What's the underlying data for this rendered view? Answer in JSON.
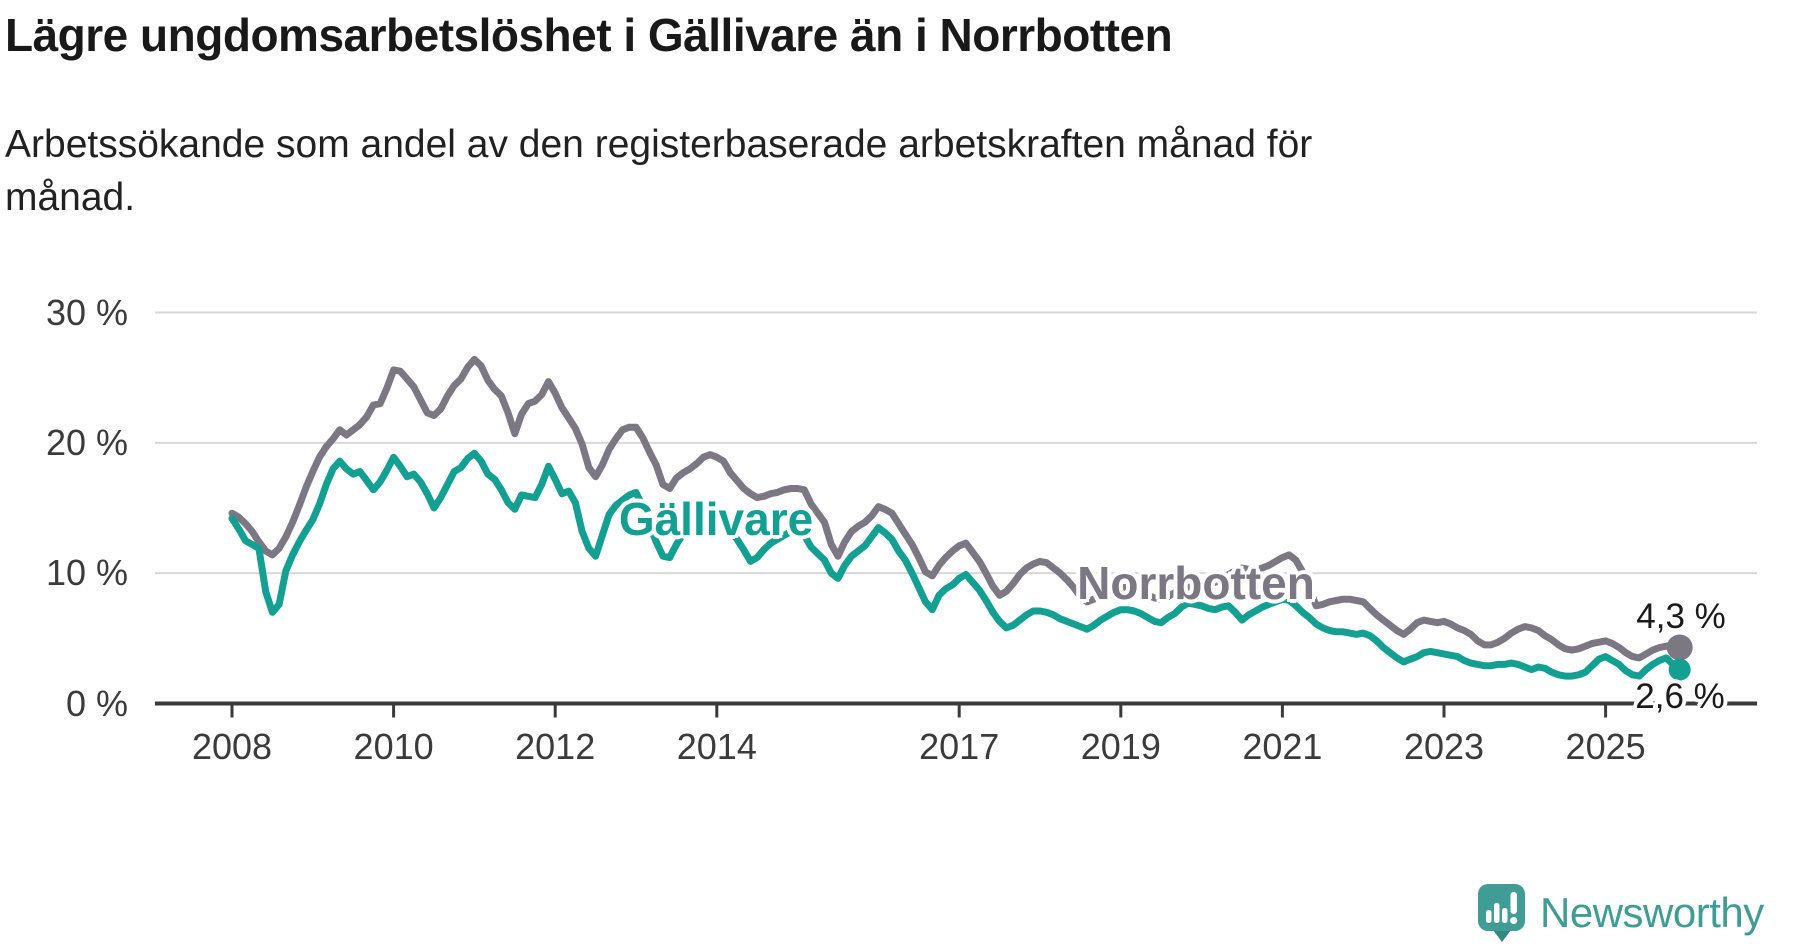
{
  "header": {
    "title": "Lägre ungdomsarbetslöshet i Gällivare än i Norrbotten",
    "subtitle": "Arbetssökande som andel av den registerbaserade arbetskraften månad för månad.",
    "subtitle_lines": [
      "Arbetssökande som andel av den registerbaserade arbetskraften månad för",
      "månad."
    ]
  },
  "footer": {
    "brand": "Newsworthy",
    "brand_color": "#3f9d96"
  },
  "chart_data": {
    "type": "line",
    "title": "Lägre ungdomsarbetslöshet i Gällivare än i Norrbotten",
    "xlabel": "",
    "ylabel": "",
    "grid": true,
    "legend_position": "inline-labels",
    "x_axis": {
      "unit": "year",
      "range": [
        2008.0,
        2025.92
      ],
      "tick_years": [
        2008,
        2010,
        2012,
        2014,
        2017,
        2019,
        2021,
        2023,
        2025
      ]
    },
    "y_axis": {
      "unit": "%",
      "range": [
        0,
        30
      ],
      "ticks": [
        {
          "value": 0,
          "label": "0 %"
        },
        {
          "value": 10,
          "label": "10 %"
        },
        {
          "value": 20,
          "label": "20 %"
        },
        {
          "value": 30,
          "label": "30 %"
        }
      ]
    },
    "series": [
      {
        "name": "Norrbotten",
        "label_text": "Norrbotten",
        "color": "#7b7884",
        "end_label": "4,3 %",
        "end_value": 4.3,
        "start_year": 2008.0,
        "points_per_year": 12,
        "values": [
          14.6,
          14.3,
          13.8,
          13.2,
          12.4,
          11.7,
          11.4,
          11.9,
          12.8,
          13.9,
          15.2,
          16.6,
          17.8,
          18.9,
          19.7,
          20.3,
          21.0,
          20.6,
          21.0,
          21.4,
          22.0,
          22.9,
          23.0,
          24.2,
          25.6,
          25.5,
          24.9,
          24.3,
          23.3,
          22.3,
          22.1,
          22.6,
          23.6,
          24.4,
          24.9,
          25.8,
          26.4,
          25.9,
          24.8,
          24.1,
          23.6,
          22.3,
          20.7,
          22.2,
          23.0,
          23.2,
          23.7,
          24.7,
          23.8,
          22.7,
          21.9,
          21.1,
          19.9,
          18.1,
          17.4,
          18.3,
          19.5,
          20.3,
          21.0,
          21.2,
          21.2,
          20.4,
          19.3,
          18.3,
          16.8,
          16.5,
          17.3,
          17.7,
          18.0,
          18.4,
          18.9,
          19.1,
          18.9,
          18.6,
          17.7,
          17.1,
          16.5,
          16.1,
          15.8,
          15.9,
          16.1,
          16.2,
          16.4,
          16.5,
          16.5,
          16.4,
          15.3,
          14.6,
          13.9,
          12.2,
          11.3,
          12.4,
          13.2,
          13.6,
          13.9,
          14.4,
          15.1,
          14.9,
          14.6,
          13.8,
          13.0,
          12.2,
          11.2,
          10.1,
          9.8,
          10.6,
          11.2,
          11.7,
          12.1,
          12.3,
          11.6,
          10.9,
          10.0,
          9.0,
          8.3,
          8.6,
          9.2,
          9.9,
          10.4,
          10.7,
          10.9,
          10.8,
          10.4,
          10.0,
          9.5,
          8.9,
          8.2,
          7.8,
          8.0,
          8.3,
          8.5,
          8.7,
          8.9,
          8.9,
          8.7,
          8.5,
          8.3,
          8.1,
          8.0,
          8.2,
          8.5,
          8.7,
          8.9,
          9.0,
          9.1,
          9.2,
          9.3,
          9.6,
          9.9,
          10.2,
          10.4,
          10.3,
          10.2,
          10.4,
          10.6,
          10.9,
          11.2,
          11.4,
          11.0,
          10.1,
          8.9,
          7.5,
          7.6,
          7.8,
          7.9,
          8.0,
          8.0,
          7.9,
          7.8,
          7.3,
          6.8,
          6.4,
          6.0,
          5.6,
          5.3,
          5.7,
          6.2,
          6.4,
          6.3,
          6.2,
          6.3,
          6.1,
          5.8,
          5.6,
          5.3,
          4.8,
          4.5,
          4.5,
          4.7,
          5.0,
          5.4,
          5.7,
          5.9,
          5.8,
          5.6,
          5.2,
          4.9,
          4.5,
          4.2,
          4.1,
          4.2,
          4.4,
          4.6,
          4.7,
          4.8,
          4.6,
          4.3,
          3.9,
          3.6,
          3.5,
          3.8,
          4.1,
          4.3,
          4.4,
          4.5,
          4.3
        ]
      },
      {
        "name": "Gällivare",
        "label_text": "Gällivare",
        "color": "#13a093",
        "end_label": "2,6 %",
        "end_value": 2.6,
        "start_year": 2008.0,
        "points_per_year": 12,
        "values": [
          14.2,
          13.4,
          12.5,
          12.2,
          11.9,
          8.6,
          7.0,
          7.6,
          10.2,
          11.4,
          12.4,
          13.3,
          14.1,
          15.3,
          16.8,
          18.0,
          18.6,
          18.0,
          17.6,
          17.8,
          17.1,
          16.4,
          17.0,
          17.9,
          18.9,
          18.2,
          17.4,
          17.6,
          17.0,
          16.1,
          15.0,
          15.8,
          16.8,
          17.8,
          18.1,
          18.8,
          19.2,
          18.6,
          17.6,
          17.2,
          16.4,
          15.4,
          14.9,
          16.0,
          15.9,
          15.8,
          16.8,
          18.2,
          17.2,
          16.1,
          16.3,
          15.4,
          13.2,
          11.9,
          11.3,
          12.9,
          14.5,
          15.2,
          15.6,
          16.0,
          16.2,
          15.1,
          13.7,
          12.4,
          11.3,
          11.2,
          12.2,
          13.0,
          13.4,
          14.0,
          14.6,
          14.9,
          14.6,
          14.0,
          13.3,
          12.6,
          11.8,
          10.9,
          11.2,
          11.8,
          12.3,
          12.6,
          12.9,
          13.2,
          13.4,
          12.9,
          12.0,
          11.5,
          11.0,
          10.0,
          9.6,
          10.6,
          11.3,
          11.7,
          12.1,
          12.8,
          13.5,
          13.1,
          12.6,
          11.7,
          11.0,
          10.0,
          8.9,
          7.8,
          7.2,
          8.3,
          8.8,
          9.1,
          9.6,
          9.9,
          9.3,
          8.7,
          7.9,
          7.0,
          6.3,
          5.8,
          6.0,
          6.4,
          6.8,
          7.1,
          7.1,
          7.0,
          6.8,
          6.5,
          6.3,
          6.1,
          5.9,
          5.7,
          6.0,
          6.4,
          6.7,
          7.0,
          7.2,
          7.2,
          7.1,
          6.9,
          6.6,
          6.3,
          6.2,
          6.6,
          6.9,
          7.4,
          7.7,
          7.6,
          7.5,
          7.3,
          7.2,
          7.4,
          7.5,
          7.0,
          6.4,
          6.8,
          7.1,
          7.4,
          7.6,
          7.8,
          8.0,
          7.9,
          7.5,
          7.0,
          6.6,
          6.1,
          5.8,
          5.6,
          5.5,
          5.5,
          5.4,
          5.3,
          5.4,
          5.2,
          4.8,
          4.3,
          3.9,
          3.5,
          3.2,
          3.4,
          3.6,
          3.9,
          4.0,
          3.9,
          3.8,
          3.7,
          3.6,
          3.3,
          3.1,
          3.0,
          2.9,
          2.9,
          3.0,
          3.0,
          3.1,
          3.0,
          2.8,
          2.6,
          2.8,
          2.7,
          2.4,
          2.2,
          2.1,
          2.1,
          2.2,
          2.4,
          2.9,
          3.4,
          3.6,
          3.3,
          3.0,
          2.5,
          2.2,
          2.1,
          2.6,
          3.0,
          3.3,
          3.5,
          3.0,
          2.6
        ]
      }
    ]
  }
}
